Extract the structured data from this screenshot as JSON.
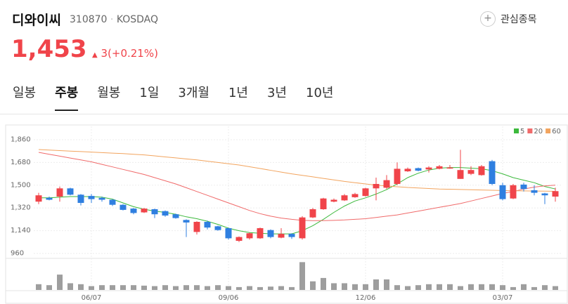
{
  "header": {
    "name": "디와이씨",
    "code": "310870",
    "market": "KOSDAQ",
    "watch_button": "관심종목"
  },
  "price": {
    "value": "1,453",
    "change": "3(+0.21%)"
  },
  "tabs": {
    "items": [
      "일봉",
      "주봉",
      "월봉",
      "1일",
      "3개월",
      "1년",
      "3년",
      "10년"
    ],
    "selected": 1
  },
  "chart_data": {
    "type": "candlestick",
    "x": [
      null,
      null,
      null,
      null,
      null,
      "06/07",
      null,
      null,
      null,
      null,
      null,
      null,
      null,
      null,
      null,
      null,
      null,
      null,
      "09/06",
      null,
      null,
      null,
      null,
      null,
      null,
      null,
      null,
      null,
      null,
      null,
      null,
      "12/06",
      null,
      null,
      null,
      null,
      null,
      null,
      null,
      null,
      null,
      null,
      null,
      null,
      "03/07",
      null,
      null,
      null,
      null,
      null
    ],
    "open": [
      1370,
      1400,
      1410,
      1475,
      1425,
      1415,
      1400,
      1385,
      1345,
      1315,
      1285,
      1310,
      1295,
      1270,
      1225,
      1130,
      1210,
      1175,
      1160,
      1060,
      1080,
      1080,
      1145,
      1085,
      1115,
      1080,
      1245,
      1310,
      1370,
      1380,
      1405,
      1415,
      1475,
      1480,
      1510,
      1610,
      1635,
      1625,
      1630,
      1635,
      1550,
      1590,
      1580,
      1690,
      1500,
      1395,
      1505,
      1460,
      1435,
      1410
    ],
    "high": [
      1440,
      1410,
      1490,
      1480,
      1430,
      1430,
      1410,
      1390,
      1350,
      1320,
      1320,
      1315,
      1300,
      1275,
      1230,
      1215,
      1220,
      1180,
      1165,
      1095,
      1125,
      1165,
      1150,
      1160,
      1120,
      1255,
      1320,
      1400,
      1395,
      1430,
      1440,
      1480,
      1560,
      1580,
      1680,
      1640,
      1640,
      1650,
      1660,
      1660,
      1780,
      1650,
      1660,
      1700,
      1520,
      1510,
      1520,
      1500,
      1440,
      1480
    ],
    "low": [
      1350,
      1380,
      1370,
      1420,
      1340,
      1360,
      1370,
      1335,
      1300,
      1270,
      1280,
      1240,
      1250,
      1235,
      1090,
      1110,
      1150,
      1140,
      1070,
      1050,
      1070,
      1075,
      1080,
      1080,
      1075,
      1070,
      1240,
      1305,
      1365,
      1375,
      1400,
      1410,
      1380,
      1470,
      1500,
      1605,
      1610,
      1600,
      1625,
      1630,
      1550,
      1580,
      1575,
      1500,
      1380,
      1390,
      1450,
      1420,
      1350,
      1370
    ],
    "close": [
      1420,
      1385,
      1475,
      1425,
      1360,
      1390,
      1385,
      1345,
      1305,
      1280,
      1315,
      1270,
      1260,
      1240,
      1205,
      1210,
      1165,
      1145,
      1080,
      1090,
      1120,
      1160,
      1090,
      1115,
      1090,
      1245,
      1310,
      1395,
      1385,
      1420,
      1430,
      1475,
      1510,
      1540,
      1630,
      1630,
      1615,
      1640,
      1650,
      1640,
      1620,
      1620,
      1650,
      1510,
      1390,
      1500,
      1470,
      1440,
      1420,
      1453
    ],
    "up_color": "#f0444a",
    "down_color": "#2f7fe0",
    "moving_averages": [
      {
        "name": "5",
        "color": "#3cb93c",
        "values": [
          1400,
          1400,
          1405,
          1410,
          1410,
          1410,
          1405,
          1390,
          1360,
          1330,
          1310,
          1295,
          1285,
          1270,
          1250,
          1235,
          1215,
          1190,
          1160,
          1140,
          1125,
          1120,
          1115,
          1115,
          1115,
          1140,
          1180,
          1230,
          1285,
          1335,
          1375,
          1400,
          1430,
          1465,
          1510,
          1560,
          1595,
          1620,
          1635,
          1640,
          1640,
          1635,
          1630,
          1615,
          1590,
          1560,
          1540,
          1520,
          1490,
          1470
        ]
      },
      {
        "name": "20",
        "color": "#f06a6a",
        "values": [
          1760,
          1745,
          1730,
          1715,
          1700,
          1685,
          1665,
          1645,
          1625,
          1605,
          1585,
          1560,
          1535,
          1510,
          1480,
          1450,
          1420,
          1390,
          1360,
          1330,
          1300,
          1275,
          1255,
          1240,
          1230,
          1222,
          1220,
          1220,
          1222,
          1225,
          1230,
          1235,
          1245,
          1255,
          1265,
          1280,
          1295,
          1310,
          1325,
          1340,
          1355,
          1375,
          1395,
          1415,
          1435,
          1450,
          1470,
          1485,
          1495,
          1500
        ]
      },
      {
        "name": "60",
        "color": "#f2a45e",
        "values": [
          1782,
          1778,
          1774,
          1770,
          1766,
          1762,
          1758,
          1754,
          1750,
          1745,
          1740,
          1732,
          1724,
          1716,
          1708,
          1700,
          1690,
          1680,
          1670,
          1660,
          1646,
          1632,
          1618,
          1604,
          1590,
          1578,
          1566,
          1554,
          1542,
          1530,
          1520,
          1510,
          1500,
          1494,
          1488,
          1482,
          1478,
          1474,
          1470,
          1468,
          1466,
          1464,
          1462,
          1460,
          1458,
          1456,
          1455,
          1454,
          1453,
          1452
        ]
      }
    ],
    "volume": {
      "color": "#9e9e9e",
      "ylim": [
        0,
        60
      ],
      "values": [
        12,
        10,
        32,
        14,
        12,
        8,
        10,
        10,
        10,
        10,
        9,
        8,
        10,
        8,
        10,
        10,
        8,
        10,
        8,
        6,
        8,
        6,
        7,
        8,
        6,
        58,
        18,
        25,
        14,
        14,
        12,
        12,
        22,
        22,
        10,
        8,
        10,
        12,
        12,
        12,
        8,
        12,
        12,
        12,
        10,
        6,
        12,
        6,
        10,
        8
      ]
    },
    "ylim": [
      960,
      1860
    ],
    "yticks": [
      960,
      {
        "value": 1140,
        "label": "1,140"
      },
      {
        "value": 1320,
        "label": "1,320"
      },
      {
        "value": 1500,
        "label": "1,500"
      },
      {
        "value": 1680,
        "label": "1,680"
      },
      {
        "value": 1860,
        "label": "1,860"
      }
    ],
    "grid": true
  }
}
